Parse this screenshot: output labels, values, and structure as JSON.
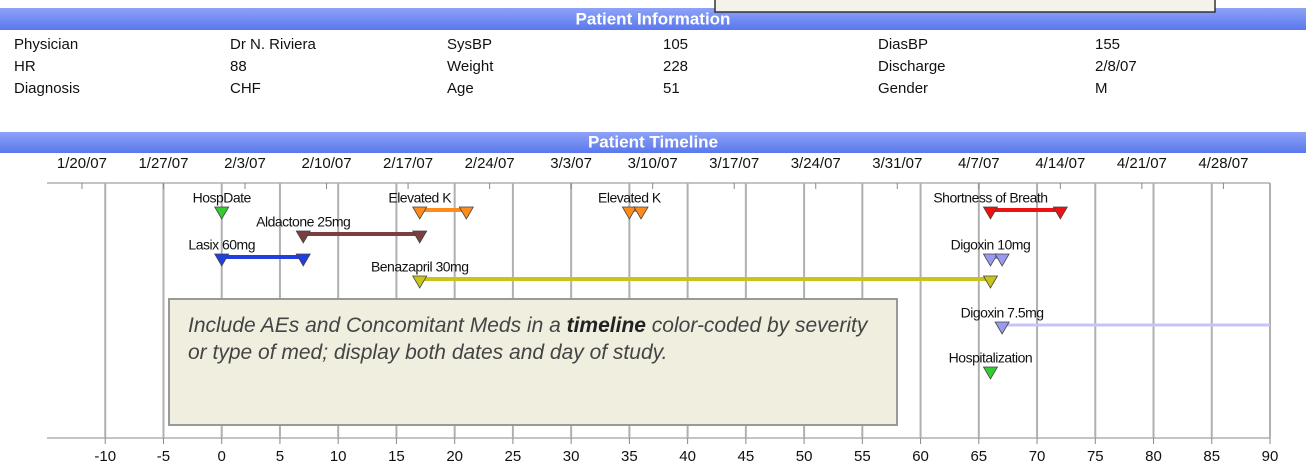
{
  "patient_info": {
    "title": "Patient Information",
    "rows": [
      [
        "Physician",
        "Dr N. Riviera",
        "SysBP",
        "105",
        "DiasBP",
        "155"
      ],
      [
        "HR",
        "88",
        "Weight",
        "228",
        "Discharge",
        "2/8/07"
      ],
      [
        "Diagnosis",
        "CHF",
        "Age",
        "51",
        "Gender",
        "M"
      ]
    ]
  },
  "chart_data": {
    "type": "timeline",
    "title": "Patient Timeline",
    "xlim": [
      -15,
      90
    ],
    "xticks": [
      -10,
      -5,
      0,
      5,
      10,
      15,
      20,
      25,
      30,
      35,
      40,
      45,
      50,
      55,
      60,
      65,
      70,
      75,
      80,
      85,
      90
    ],
    "date_ticks": [
      {
        "value": -12,
        "label": "1/20/07"
      },
      {
        "value": -5,
        "label": "1/27/07"
      },
      {
        "value": 2,
        "label": "2/3/07"
      },
      {
        "value": 9,
        "label": "2/10/07"
      },
      {
        "value": 16,
        "label": "2/17/07"
      },
      {
        "value": 23,
        "label": "2/24/07"
      },
      {
        "value": 30,
        "label": "3/3/07"
      },
      {
        "value": 37,
        "label": "3/10/07"
      },
      {
        "value": 44,
        "label": "3/17/07"
      },
      {
        "value": 51,
        "label": "3/24/07"
      },
      {
        "value": 58,
        "label": "3/31/07"
      },
      {
        "value": 65,
        "label": "4/7/07"
      },
      {
        "value": 72,
        "label": "4/14/07"
      },
      {
        "value": 79,
        "label": "4/21/07"
      },
      {
        "value": 86,
        "label": "4/28/07"
      }
    ],
    "grid": true,
    "events": [
      {
        "name": "HospDate",
        "start": 0,
        "color": "#33cc33"
      },
      {
        "name": "Aldactone 25mg",
        "start": 7,
        "end": 17,
        "color": "#7b3f3f"
      },
      {
        "name": "Elevated K",
        "start": 17,
        "end": 21,
        "color": "#ff8c1a"
      },
      {
        "name": "Lasix 60mg",
        "start": 0,
        "end": 7,
        "color": "#1f3fe0"
      },
      {
        "name": "Benazapril 30mg",
        "start": 17,
        "end": 66,
        "color": "#c8c41a"
      },
      {
        "name": "Elevated K",
        "start": 35,
        "end": 36,
        "color": "#ff8c1a"
      },
      {
        "name": "Shortness of Breath",
        "start": 66,
        "end": 72,
        "color": "#ee1111"
      },
      {
        "name": "Digoxin 10mg",
        "start": 66,
        "end": 67,
        "color": "#9a9af0"
      },
      {
        "name": "Digoxin 7.5mg",
        "start": 67,
        "end": 90,
        "end_marker": false,
        "color": "#9a9af0"
      },
      {
        "name": "Hospitalization",
        "start": 66,
        "color": "#33cc33"
      }
    ],
    "annotation": [
      "Include AEs and Concomitant Meds in a ",
      "timeline",
      " color-coded by severity or type of med; display both dates and day of study."
    ]
  }
}
